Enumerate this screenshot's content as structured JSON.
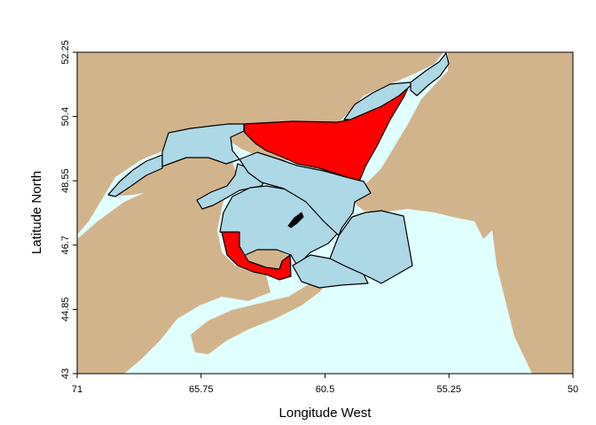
{
  "map": {
    "xlabel": "Longitude West",
    "ylabel": "Latitude North",
    "x_ticks": [
      "71",
      "65.75",
      "60.5",
      "55.25",
      "50"
    ],
    "y_ticks": [
      "52.25",
      "50.4",
      "48.55",
      "46.7",
      "44.85",
      "43"
    ],
    "xlim": [
      71,
      50
    ],
    "ylim": [
      43,
      52.25
    ],
    "colors": {
      "water": "#e0ffff",
      "land": "#d2b48c",
      "zone_default": "#add8e6",
      "zone_highlight": "#ff0000",
      "border": "#000000"
    },
    "zones": [
      {
        "id": "st-lawrence-estuary",
        "highlighted": false
      },
      {
        "id": "gaspe-upper",
        "highlighted": false
      },
      {
        "id": "gaspe-lower",
        "highlighted": false
      },
      {
        "id": "chaleur-bay",
        "highlighted": false
      },
      {
        "id": "anticosti-north",
        "highlighted": true
      },
      {
        "id": "anticosti-island-zone",
        "highlighted": false
      },
      {
        "id": "central-gulf",
        "highlighted": false
      },
      {
        "id": "magdalen-shallows",
        "highlighted": false
      },
      {
        "id": "northumberland-strait",
        "highlighted": true
      },
      {
        "id": "cabot-strait",
        "highlighted": false
      },
      {
        "id": "strait-of-belle-isle",
        "highlighted": false
      }
    ]
  }
}
